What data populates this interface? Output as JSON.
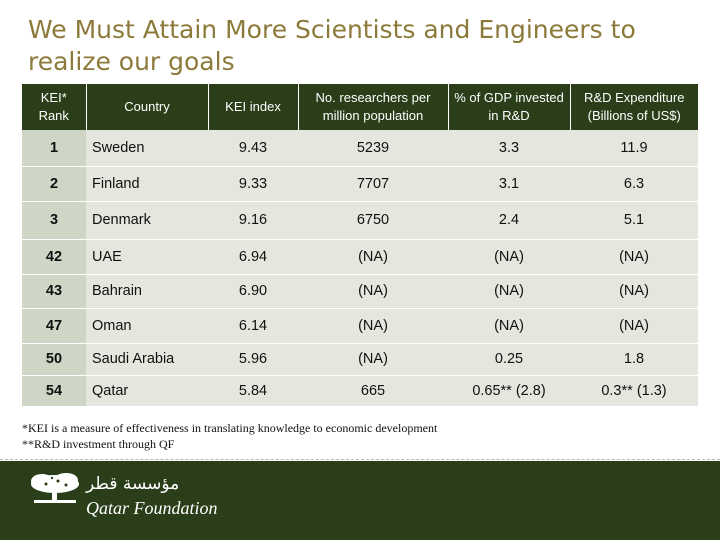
{
  "title": "We Must Attain More Scientists and Engineers to realize our goals",
  "table": {
    "headers": {
      "rank": "KEI* Rank",
      "country": "Country",
      "kei": "KEI index",
      "researchers": "No. researchers per million population",
      "gdp": "% of GDP invested in R&D",
      "expenditure": "R&D Expenditure (Billions of US$)"
    },
    "rows": [
      {
        "rank": "1",
        "country": "Sweden",
        "kei": "9.43",
        "researchers": "5239",
        "gdp": "3.3",
        "expenditure": "11.9"
      },
      {
        "rank": "2",
        "country": "Finland",
        "kei": "9.33",
        "researchers": "7707",
        "gdp": "3.1",
        "expenditure": "6.3"
      },
      {
        "rank": "3",
        "country": "Denmark",
        "kei": "9.16",
        "researchers": "6750",
        "gdp": "2.4",
        "expenditure": "5.1"
      },
      {
        "rank": "42",
        "country": "UAE",
        "kei": "6.94",
        "researchers": "(NA)",
        "gdp": "(NA)",
        "expenditure": "(NA)"
      },
      {
        "rank": "43",
        "country": "Bahrain",
        "kei": "6.90",
        "researchers": "(NA)",
        "gdp": "(NA)",
        "expenditure": "(NA)"
      },
      {
        "rank": "47",
        "country": "Oman",
        "kei": "6.14",
        "researchers": "(NA)",
        "gdp": "(NA)",
        "expenditure": "(NA)"
      },
      {
        "rank": "50",
        "country": "Saudi Arabia",
        "kei": "5.96",
        "researchers": "(NA)",
        "gdp": "0.25",
        "expenditure": "1.8"
      },
      {
        "rank": "54",
        "country": "Qatar",
        "kei": "5.84",
        "researchers": "665",
        "gdp": "0.65** (2.8)",
        "expenditure": "0.3** (1.3)"
      }
    ]
  },
  "notes": {
    "kei": "*KEI is a measure of effectiveness in translating knowledge to economic development",
    "qf": "**R&D investment through QF"
  },
  "footer": {
    "logo_arabic": "مؤسسة قطر",
    "logo_name": "Qatar Foundation"
  },
  "colors": {
    "title": "#8c7a3a",
    "header_bg": "#2a3e1a",
    "row_bg": "#e4e7de",
    "rank_bg": "#cfd6c6"
  }
}
